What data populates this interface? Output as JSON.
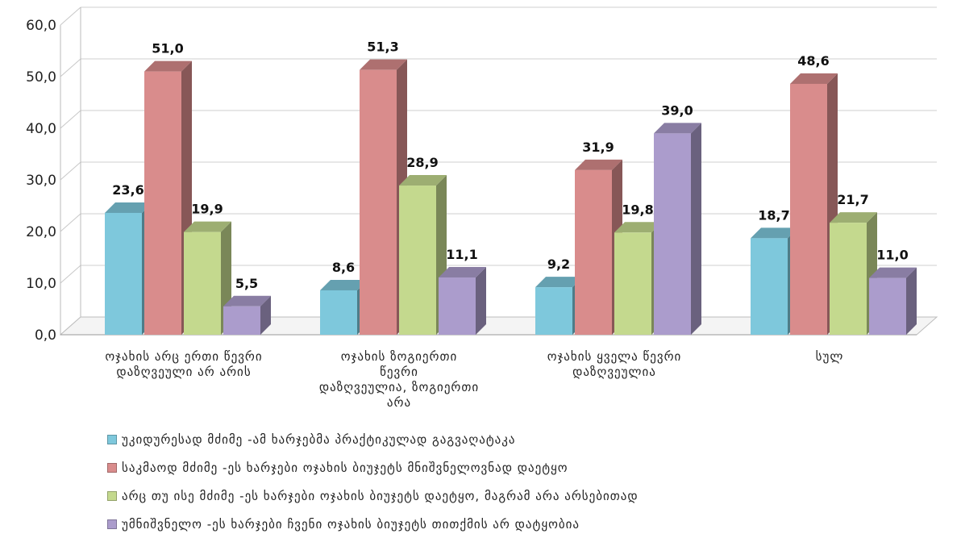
{
  "chart_data": {
    "type": "bar",
    "categories": [
      "ოჯახის არც ერთი წევრი დაზღვეული არ არის",
      "ოჯახის ზოგიერთი წევრი დაზღვეულია, ზოგიერთი არა",
      "ოჯახის ყველა წევრი დაზღვეულია",
      "სულ"
    ],
    "series": [
      {
        "name": "უკიდურესად მძიმე -ამ ხარჯებმა პრაქტიკულად გაგვაღატაკა",
        "values": [
          23.6,
          8.6,
          9.2,
          18.7
        ],
        "color": "#7ec8dc"
      },
      {
        "name": "საკმაოდ მძიმე -ეს ხარჯები ოჯახის ბიუჯეტს მნიშვნელოვნად დაეტყო",
        "values": [
          51.0,
          51.3,
          31.9,
          48.6
        ],
        "color": "#d98c8c"
      },
      {
        "name": "არც თუ ისე მძიმე -ეს ხარჯები ოჯახის ბიუჯეტს დაეტყო, მაგრამ არა არსებითად",
        "values": [
          19.9,
          28.9,
          19.8,
          21.7
        ],
        "color": "#c4d98e"
      },
      {
        "name": "უმნიშვნელო -ეს ხარჯები ჩვენი ოჯახის ბიუჯეტს თითქმის არ დატყობია",
        "values": [
          5.5,
          11.1,
          39.0,
          11.0
        ],
        "color": "#ab9ccc"
      }
    ],
    "data_labels": [
      [
        "23,6",
        "8,6",
        "9,2",
        "18,7"
      ],
      [
        "51,0",
        "51,3",
        "31,9",
        "48,6"
      ],
      [
        "19,9",
        "28,9",
        "19,8",
        "21,7"
      ],
      [
        "5,5",
        "11,1",
        "39,0",
        "11,0"
      ]
    ],
    "yticks": [
      "0,0",
      "10,0",
      "20,0",
      "30,0",
      "40,0",
      "50,0",
      "60,0"
    ],
    "ylim": [
      0,
      60
    ],
    "grid": true,
    "legend_position": "bottom",
    "title": "",
    "xlabel": "",
    "ylabel": ""
  },
  "category_lines": [
    [
      "ოჯახის არც ერთი წევრი",
      "დაზღვეული არ არის"
    ],
    [
      "ოჯახის ზოგიერთი",
      "წევრი",
      "დაზღვეულია, ზოგიერთი",
      "არა"
    ],
    [
      "ოჯახის ყველა წევრი",
      "დაზღვეულია"
    ],
    [
      "სულ"
    ]
  ]
}
